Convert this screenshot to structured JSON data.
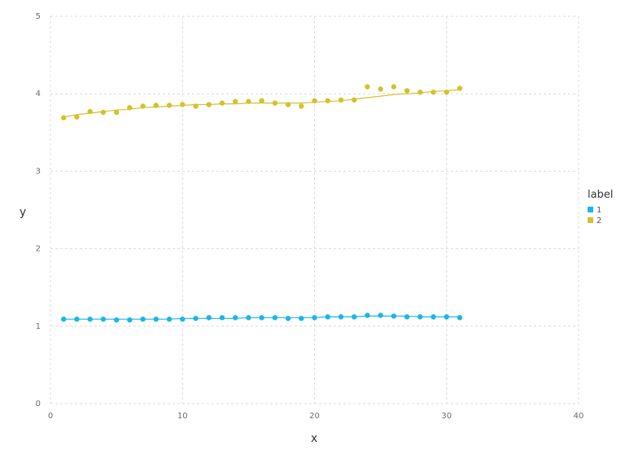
{
  "chart_data": {
    "type": "scatter",
    "title": "",
    "xlabel": "x",
    "ylabel": "y",
    "xlim": [
      0,
      40
    ],
    "ylim": [
      0,
      5
    ],
    "xticks": [
      0,
      10,
      20,
      30,
      40
    ],
    "yticks": [
      0,
      1,
      2,
      3,
      4,
      5
    ],
    "grid": true,
    "legend": {
      "title": "label",
      "placement": "right"
    },
    "series": [
      {
        "name": "1",
        "color": "#1bb6e8",
        "x": [
          1,
          2,
          3,
          4,
          5,
          6,
          7,
          8,
          9,
          10,
          11,
          12,
          13,
          14,
          15,
          16,
          17,
          18,
          19,
          20,
          21,
          22,
          23,
          24,
          25,
          26,
          27,
          28,
          29,
          30,
          31
        ],
        "y": [
          1.09,
          1.09,
          1.09,
          1.09,
          1.08,
          1.08,
          1.09,
          1.09,
          1.09,
          1.09,
          1.1,
          1.11,
          1.11,
          1.11,
          1.11,
          1.11,
          1.11,
          1.1,
          1.1,
          1.11,
          1.12,
          1.12,
          1.12,
          1.14,
          1.14,
          1.13,
          1.12,
          1.12,
          1.12,
          1.12,
          1.11
        ],
        "trend": [
          1.09,
          1.09,
          1.09,
          1.09,
          1.09,
          1.09,
          1.09,
          1.09,
          1.09,
          1.1,
          1.1,
          1.1,
          1.1,
          1.1,
          1.11,
          1.11,
          1.11,
          1.11,
          1.11,
          1.11,
          1.12,
          1.12,
          1.12,
          1.13,
          1.13,
          1.13,
          1.13,
          1.12,
          1.12,
          1.12,
          1.12
        ]
      },
      {
        "name": "2",
        "color": "#d4c12c",
        "x": [
          1,
          2,
          3,
          4,
          5,
          6,
          7,
          8,
          9,
          10,
          11,
          12,
          13,
          14,
          15,
          16,
          17,
          18,
          19,
          20,
          21,
          22,
          23,
          24,
          25,
          26,
          27,
          28,
          29,
          30,
          31
        ],
        "y": [
          3.69,
          3.7,
          3.77,
          3.76,
          3.76,
          3.82,
          3.84,
          3.85,
          3.85,
          3.86,
          3.84,
          3.86,
          3.88,
          3.9,
          3.9,
          3.91,
          3.88,
          3.86,
          3.84,
          3.91,
          3.91,
          3.92,
          3.92,
          4.09,
          4.06,
          4.09,
          4.04,
          4.02,
          4.02,
          4.02,
          4.07
        ],
        "trend": [
          3.7,
          3.73,
          3.75,
          3.77,
          3.79,
          3.8,
          3.82,
          3.83,
          3.84,
          3.85,
          3.86,
          3.86,
          3.87,
          3.87,
          3.88,
          3.88,
          3.88,
          3.88,
          3.88,
          3.89,
          3.9,
          3.91,
          3.93,
          3.95,
          3.97,
          3.99,
          4.0,
          4.01,
          4.03,
          4.04,
          4.05
        ]
      }
    ]
  }
}
